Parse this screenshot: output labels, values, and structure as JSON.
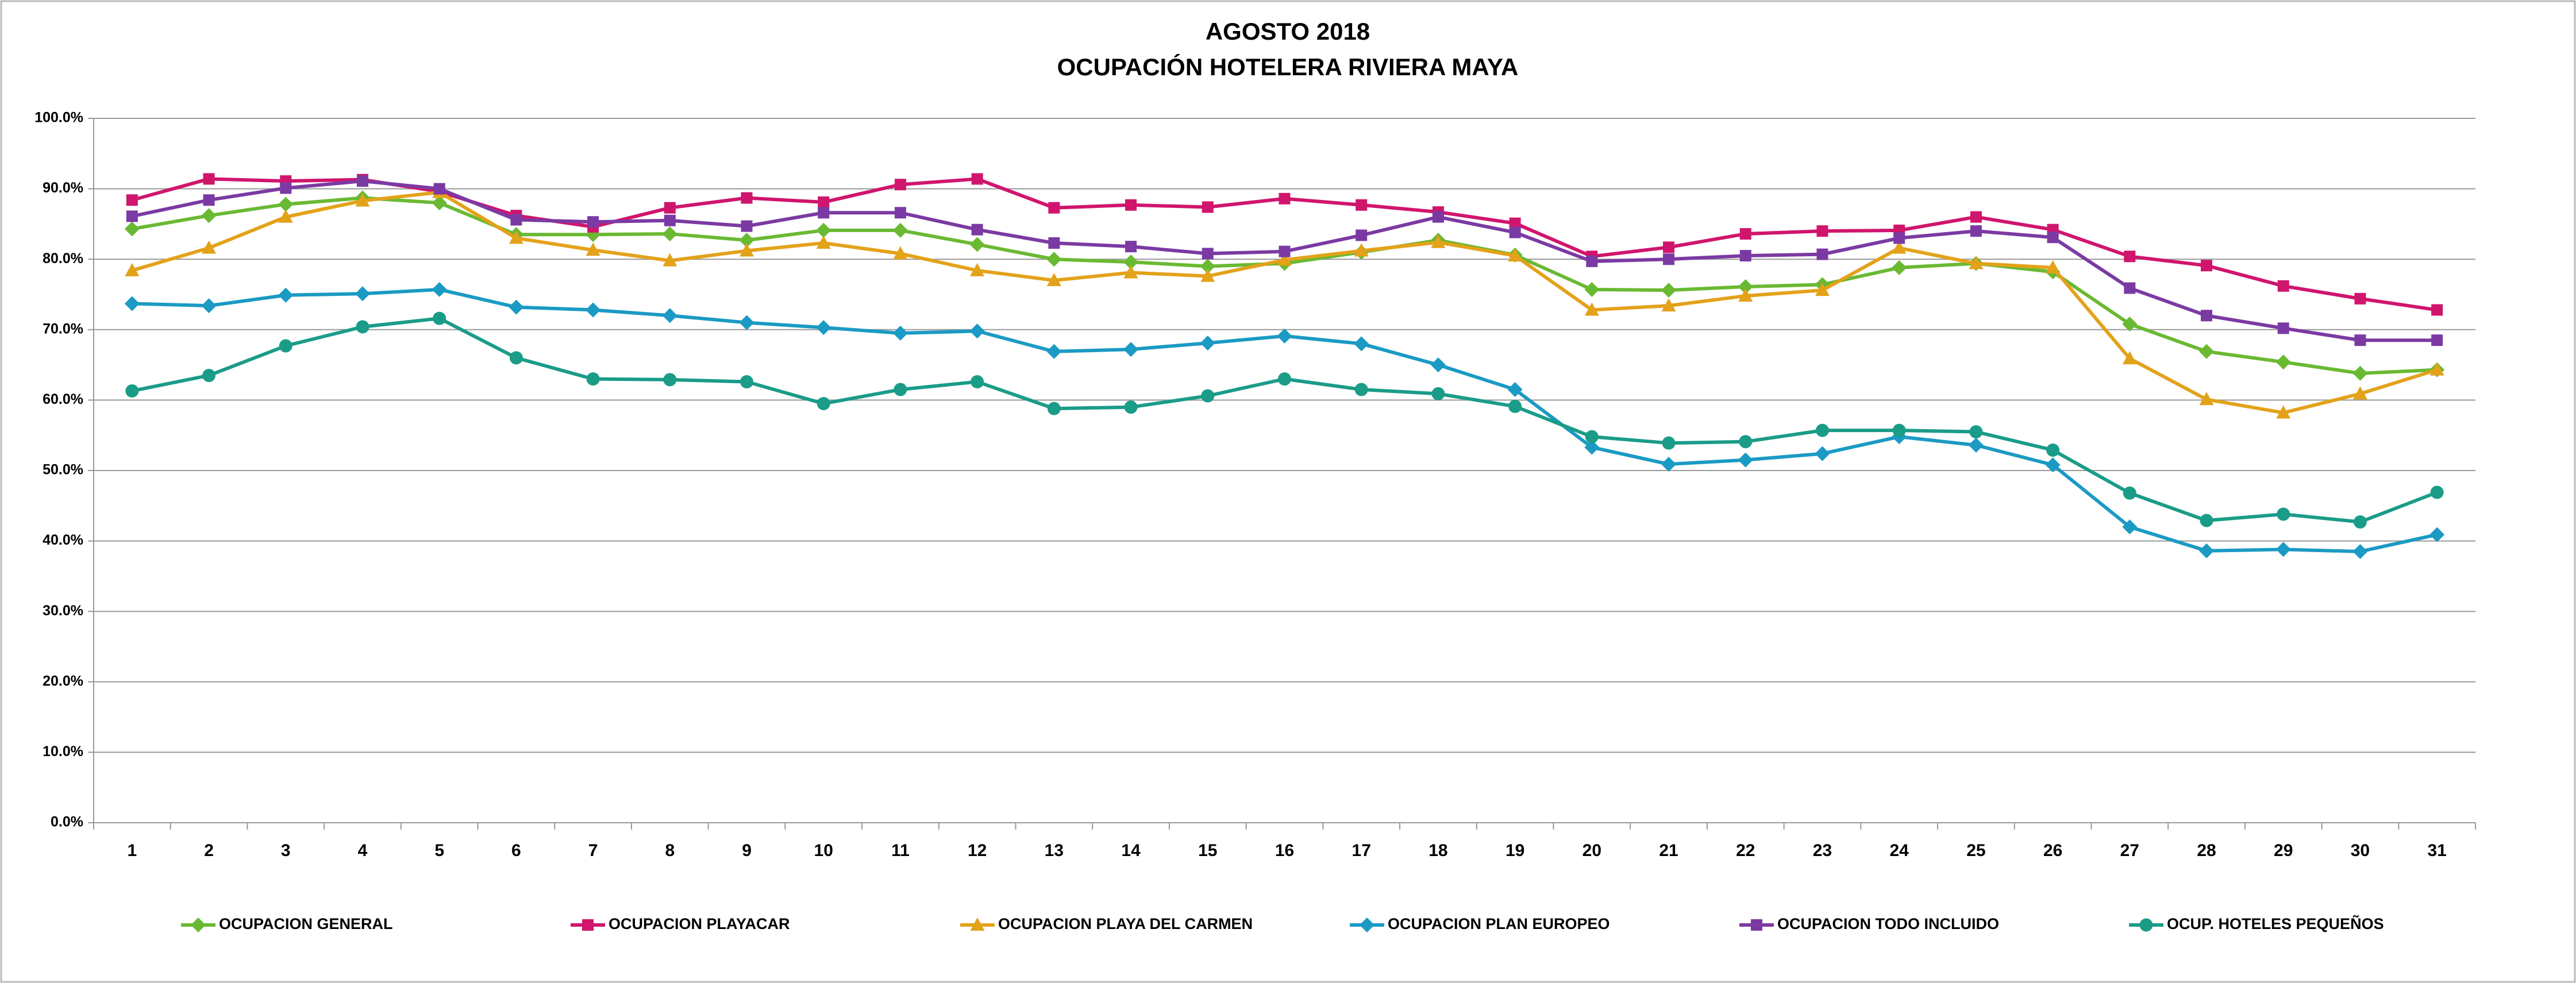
{
  "chart_data": {
    "type": "line",
    "title": [
      "AGOSTO 2018",
      "OCUPACIÓN HOTELERA RIVIERA MAYA"
    ],
    "categories": [
      "1",
      "2",
      "3",
      "4",
      "5",
      "6",
      "7",
      "8",
      "9",
      "10",
      "11",
      "12",
      "13",
      "14",
      "15",
      "16",
      "17",
      "18",
      "19",
      "20",
      "21",
      "22",
      "23",
      "24",
      "25",
      "26",
      "27",
      "28",
      "29",
      "30",
      "31"
    ],
    "ylim": [
      0,
      100
    ],
    "yticks": [
      {
        "value": 0,
        "label": "0.0%"
      },
      {
        "value": 10,
        "label": "10.0%"
      },
      {
        "value": 20,
        "label": "20.0%"
      },
      {
        "value": 30,
        "label": "30.0%"
      },
      {
        "value": 40,
        "label": "40.0%"
      },
      {
        "value": 50,
        "label": "50.0%"
      },
      {
        "value": 60,
        "label": "60.0%"
      },
      {
        "value": 70,
        "label": "70.0%"
      },
      {
        "value": 80,
        "label": "80.0%"
      },
      {
        "value": 90,
        "label": "90.0%"
      },
      {
        "value": 100,
        "label": "100.0%"
      }
    ],
    "grid": true,
    "legend": "bottom",
    "series": [
      {
        "name": "OCUPACION GENERAL",
        "color": "#6ab933",
        "marker": "diamond",
        "values": [
          84.3,
          86.2,
          87.8,
          88.7,
          88.0,
          83.5,
          83.5,
          83.6,
          82.7,
          84.1,
          84.1,
          82.1,
          80.0,
          79.6,
          79.0,
          79.4,
          81.0,
          82.7,
          80.6,
          75.7,
          75.6,
          76.1,
          76.4,
          78.8,
          79.4,
          78.2,
          70.8,
          66.9,
          65.4,
          63.8,
          64.3
        ]
      },
      {
        "name": "OCUPACION PLAYACAR",
        "color": "#d0156d",
        "marker": "square",
        "values": [
          88.4,
          91.4,
          91.1,
          91.3,
          89.6,
          86.2,
          84.6,
          87.3,
          88.7,
          88.1,
          90.6,
          91.4,
          87.3,
          87.7,
          87.4,
          88.6,
          87.7,
          86.7,
          85.1,
          80.4,
          81.7,
          83.6,
          84.0,
          84.1,
          86.0,
          84.2,
          80.4,
          79.1,
          76.2,
          74.4,
          72.8
        ]
      },
      {
        "name": "OCUPACION PLAYA DEL CARMEN",
        "color": "#e3a21a",
        "marker": "triangle",
        "values": [
          78.4,
          81.6,
          86.0,
          88.3,
          89.5,
          83.0,
          81.3,
          79.8,
          81.2,
          82.3,
          80.8,
          78.4,
          77.0,
          78.1,
          77.6,
          79.9,
          81.2,
          82.4,
          80.5,
          72.8,
          73.4,
          74.8,
          75.6,
          81.6,
          79.4,
          78.8,
          65.9,
          60.1,
          58.2,
          60.9,
          64.3
        ]
      },
      {
        "name": "OCUPACION PLAN EUROPEO",
        "color": "#1b9ac4",
        "marker": "diamond",
        "values": [
          73.7,
          73.4,
          74.9,
          75.1,
          75.7,
          73.2,
          72.8,
          72.0,
          71.0,
          70.3,
          69.5,
          69.8,
          66.9,
          67.2,
          68.1,
          69.1,
          68.0,
          65.0,
          61.5,
          53.3,
          50.9,
          51.5,
          52.4,
          54.8,
          53.6,
          50.8,
          42.0,
          38.6,
          38.8,
          38.5,
          40.9
        ]
      },
      {
        "name": "OCUPACION TODO INCLUIDO",
        "color": "#7b3aa3",
        "marker": "square",
        "values": [
          86.1,
          88.4,
          90.1,
          91.1,
          90.0,
          85.6,
          85.3,
          85.5,
          84.7,
          86.6,
          86.6,
          84.2,
          82.3,
          81.8,
          80.8,
          81.1,
          83.4,
          86.0,
          83.8,
          79.7,
          80.0,
          80.5,
          80.7,
          83.0,
          84.0,
          83.1,
          75.9,
          72.0,
          70.2,
          68.5,
          68.5
        ]
      },
      {
        "name": "OCUP. HOTELES PEQUEÑOS",
        "color": "#1a9c88",
        "marker": "circle",
        "values": [
          61.3,
          63.5,
          67.7,
          70.4,
          71.6,
          66.0,
          63.0,
          62.9,
          62.6,
          59.5,
          61.5,
          62.6,
          58.8,
          59.0,
          60.6,
          63.0,
          61.5,
          60.9,
          59.1,
          54.8,
          53.9,
          54.1,
          55.7,
          55.7,
          55.5,
          52.9,
          46.8,
          42.9,
          43.8,
          42.7,
          46.9
        ]
      }
    ]
  }
}
